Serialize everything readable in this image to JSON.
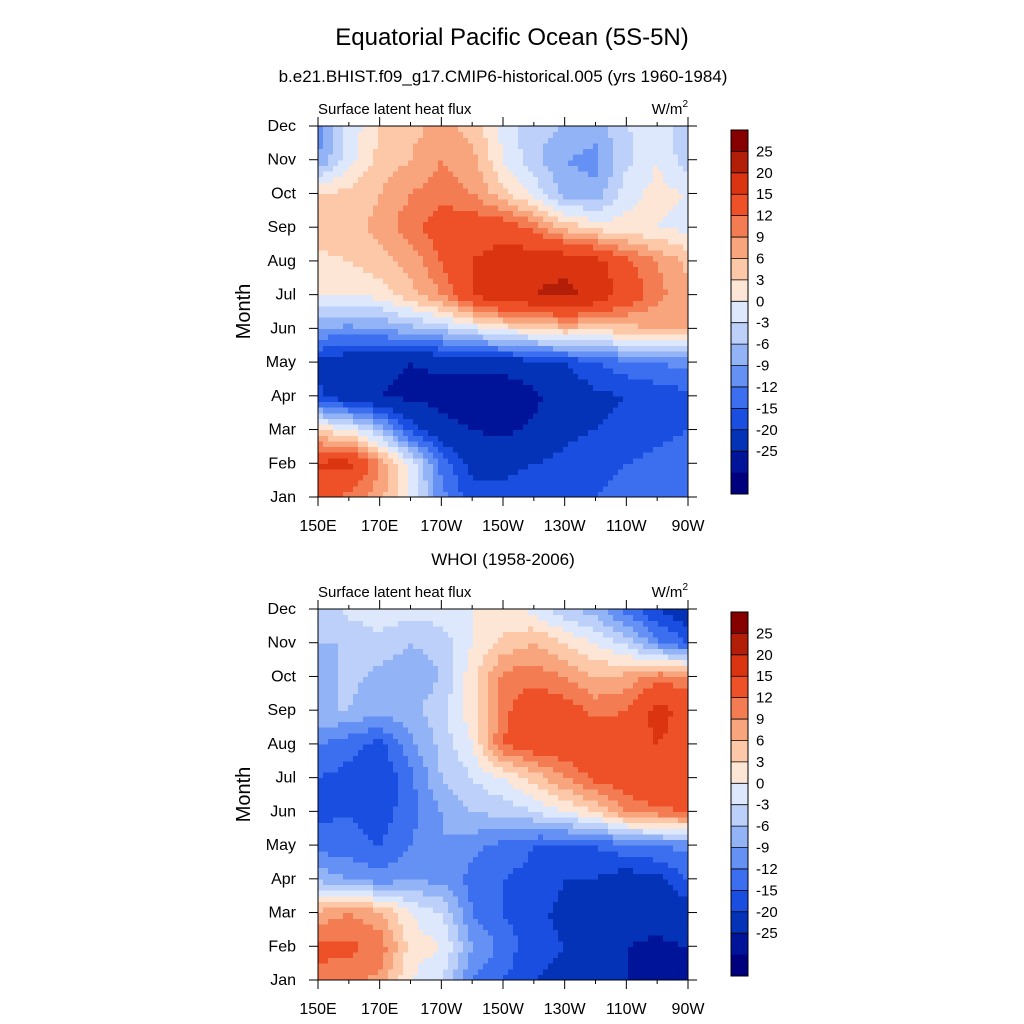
{
  "figure": {
    "title": "Equatorial Pacific Ocean (5S-5N)"
  },
  "chart_data": [
    {
      "type": "heatmap",
      "title": "b.e21.BHIST.f09_g17.CMIP6-historical.005 (yrs 1960-1984)",
      "left_string": "Surface latent heat flux",
      "units_base": "W/m",
      "units_sup": "2",
      "xlabel": "",
      "ylabel": "Month",
      "x_tick_labels": [
        "150E",
        "170E",
        "170W",
        "150W",
        "130W",
        "110W",
        "90W"
      ],
      "x_ticks": [
        150,
        170,
        190,
        210,
        230,
        250,
        270
      ],
      "xlim": [
        150,
        270
      ],
      "y_tick_labels": [
        "Jan",
        "Feb",
        "Mar",
        "Apr",
        "May",
        "Jun",
        "Jul",
        "Aug",
        "Sep",
        "Oct",
        "Nov",
        "Dec"
      ],
      "x": [
        150,
        160,
        170,
        180,
        190,
        200,
        210,
        220,
        230,
        240,
        250,
        260,
        270
      ],
      "values": [
        [
          16,
          14,
          10,
          3,
          -8,
          -14,
          -14,
          -13,
          -12,
          -12,
          -11,
          -10,
          -10
        ],
        [
          21,
          22,
          12,
          2,
          -10,
          -16,
          -16,
          -15,
          -14,
          -13,
          -12,
          -11,
          -10
        ],
        [
          6,
          3,
          -3,
          -13,
          -18,
          -20,
          -21,
          -19,
          -16,
          -15,
          -14,
          -13,
          -12
        ],
        [
          -14,
          -18,
          -20,
          -21,
          -22,
          -24,
          -24,
          -21,
          -18,
          -16,
          -15,
          -14,
          -13
        ],
        [
          -16,
          -18,
          -19,
          -20,
          -19,
          -18,
          -18,
          -16,
          -15,
          -12,
          -10,
          -9,
          -8
        ],
        [
          -6,
          -7,
          -6,
          -4,
          -2,
          1,
          4,
          6,
          8,
          7,
          8,
          9,
          10
        ],
        [
          3,
          3,
          4,
          8,
          12,
          20,
          24,
          25,
          26,
          24,
          18,
          13,
          10
        ],
        [
          5,
          6,
          8,
          10,
          15,
          20,
          22,
          24,
          24,
          22,
          16,
          12,
          8
        ],
        [
          8,
          8,
          10,
          14,
          17,
          18,
          18,
          14,
          8,
          5,
          4,
          3,
          2
        ],
        [
          6,
          7,
          9,
          12,
          14,
          12,
          7,
          2,
          -4,
          -5,
          2,
          4,
          3
        ],
        [
          -6,
          2,
          7,
          9,
          12,
          10,
          3,
          -2,
          -6,
          -7,
          -1,
          3,
          -2
        ],
        [
          -8,
          1,
          6,
          8,
          10,
          8,
          2,
          -2,
          -3,
          -5,
          0,
          1,
          -1
        ]
      ],
      "colorbar_levels": [
        "25",
        "20",
        "15",
        "12",
        "9",
        "6",
        "3",
        "0",
        "-3",
        "-6",
        "-9",
        "-12",
        "-15",
        "-20",
        "-25"
      ],
      "contour_levels": [
        -25,
        -20,
        -15,
        -12,
        -9,
        -6,
        -3,
        0,
        3,
        6,
        9,
        12,
        15,
        20,
        25
      ],
      "colors": [
        "#00007f",
        "#00149a",
        "#0433b8",
        "#1a4ee0",
        "#3c6ef0",
        "#6590f4",
        "#93b3f7",
        "#bcd0fa",
        "#dde8fc",
        "#fde6d6",
        "#fcc8a8",
        "#f8a57d",
        "#f47c52",
        "#ee5127",
        "#da3410",
        "#b31e08",
        "#870000"
      ]
    },
    {
      "type": "heatmap",
      "title": "WHOI (1958-2006)",
      "left_string": "Surface latent heat flux",
      "units_base": "W/m",
      "units_sup": "2",
      "xlabel": "",
      "ylabel": "Month",
      "x_tick_labels": [
        "150E",
        "170E",
        "170W",
        "150W",
        "130W",
        "110W",
        "90W"
      ],
      "x_ticks": [
        150,
        170,
        190,
        210,
        230,
        250,
        270
      ],
      "xlim": [
        150,
        270
      ],
      "y_tick_labels": [
        "Jan",
        "Feb",
        "Mar",
        "Apr",
        "May",
        "Jun",
        "Jul",
        "Aug",
        "Sep",
        "Oct",
        "Nov",
        "Dec"
      ],
      "x": [
        150,
        160,
        170,
        180,
        190,
        200,
        210,
        220,
        230,
        240,
        250,
        260,
        270
      ],
      "values": [
        [
          14,
          13,
          11,
          3,
          0,
          -9,
          -12,
          -15,
          -16,
          -18,
          -20,
          -22,
          -24
        ],
        [
          16,
          16,
          14,
          5,
          3,
          -6,
          -10,
          -14,
          -15,
          -18,
          -20,
          -21,
          -20
        ],
        [
          10,
          12,
          10,
          3,
          0,
          -9,
          -12,
          -14,
          -16,
          -16,
          -18,
          -18,
          -17
        ],
        [
          -4,
          -6,
          -8,
          -6,
          -7,
          -10,
          -12,
          -13,
          -15,
          -15,
          -17,
          -16,
          -12
        ],
        [
          -10,
          -11,
          -12,
          -9,
          -6,
          -8,
          -10,
          -12,
          -13,
          -12,
          -10,
          -9,
          -8
        ],
        [
          -13,
          -12,
          -14,
          -10,
          -6,
          -3,
          -2,
          0,
          3,
          6,
          12,
          14,
          15
        ],
        [
          -12,
          -13,
          -15,
          -10,
          -3,
          0,
          3,
          7,
          12,
          16,
          18,
          20,
          20
        ],
        [
          -9,
          -11,
          -13,
          -7,
          -2,
          3,
          15,
          18,
          18,
          18,
          18,
          20,
          18
        ],
        [
          -3,
          -3,
          -5,
          -4,
          -1,
          5,
          14,
          18,
          17,
          14,
          15,
          22,
          18
        ],
        [
          -5,
          -2,
          -4,
          -5,
          -3,
          5,
          13,
          14,
          12,
          9,
          10,
          14,
          13
        ],
        [
          -3,
          -3,
          -1,
          -3,
          -2,
          3,
          7,
          9,
          6,
          3,
          -1,
          -8,
          -12
        ],
        [
          -3,
          1,
          2,
          1,
          2,
          3,
          4,
          2,
          -2,
          -5,
          -10,
          -15,
          -18
        ]
      ],
      "colorbar_levels": [
        "25",
        "20",
        "15",
        "12",
        "9",
        "6",
        "3",
        "0",
        "-3",
        "-6",
        "-9",
        "-12",
        "-15",
        "-20",
        "-25"
      ],
      "contour_levels": [
        -25,
        -20,
        -15,
        -12,
        -9,
        -6,
        -3,
        0,
        3,
        6,
        9,
        12,
        15,
        20,
        25
      ],
      "colors": [
        "#00007f",
        "#00149a",
        "#0433b8",
        "#1a4ee0",
        "#3c6ef0",
        "#6590f4",
        "#93b3f7",
        "#bcd0fa",
        "#dde8fc",
        "#fde6d6",
        "#fcc8a8",
        "#f8a57d",
        "#f47c52",
        "#ee5127",
        "#da3410",
        "#b31e08",
        "#870000"
      ]
    }
  ]
}
